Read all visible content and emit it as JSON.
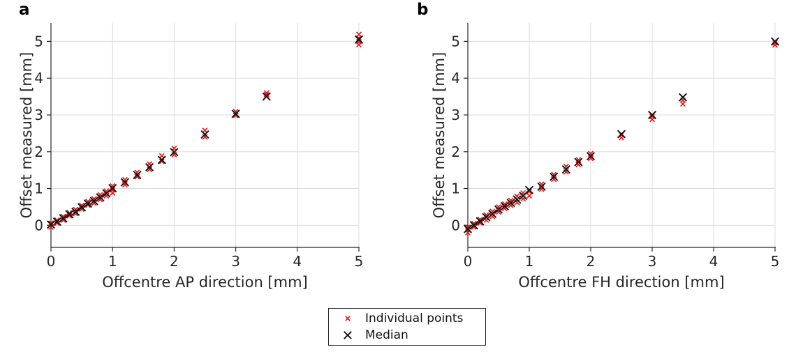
{
  "figure_title": "",
  "colors": {
    "background": "#ffffff",
    "grid": "#dcdcdc",
    "axis": "#262626",
    "text": "#262626",
    "individual": "#ee1111",
    "median": "#111111"
  },
  "legend": {
    "entries": [
      {
        "label": "Individual points",
        "marker": "x-small-red",
        "color": "#ee1111"
      },
      {
        "label": "Median",
        "marker": "X-large-black",
        "color": "#111111"
      }
    ],
    "position": "below-figure-center"
  },
  "chart_data": [
    {
      "type": "scatter",
      "panel_label": "a",
      "xlabel": "Offcentre AP direction [mm]",
      "ylabel": "Offset measured [mm]",
      "xlim": [
        0,
        5
      ],
      "ylim": [
        -0.6,
        5.5
      ],
      "xticks": [
        0,
        1,
        2,
        3,
        4,
        5
      ],
      "yticks": [
        0,
        1,
        2,
        3,
        4,
        5
      ],
      "grid": true,
      "series": [
        {
          "name": "Individual points",
          "marker": "x",
          "color": "#ee1111",
          "points": [
            [
              0,
              0.02
            ],
            [
              0,
              -0.05
            ],
            [
              0,
              0.06
            ],
            [
              0.1,
              0.06
            ],
            [
              0.1,
              0.14
            ],
            [
              0.2,
              0.14
            ],
            [
              0.2,
              0.24
            ],
            [
              0.3,
              0.26
            ],
            [
              0.3,
              0.34
            ],
            [
              0.4,
              0.32
            ],
            [
              0.4,
              0.43
            ],
            [
              0.5,
              0.44
            ],
            [
              0.5,
              0.54
            ],
            [
              0.6,
              0.55
            ],
            [
              0.6,
              0.65
            ],
            [
              0.7,
              0.6
            ],
            [
              0.7,
              0.72
            ],
            [
              0.8,
              0.7
            ],
            [
              0.8,
              0.83
            ],
            [
              0.9,
              0.8
            ],
            [
              0.9,
              0.93
            ],
            [
              1.0,
              0.88
            ],
            [
              1.0,
              0.96
            ],
            [
              1.0,
              1.07
            ],
            [
              1.2,
              1.1
            ],
            [
              1.2,
              1.24
            ],
            [
              1.4,
              1.32
            ],
            [
              1.4,
              1.44
            ],
            [
              1.6,
              1.52
            ],
            [
              1.6,
              1.67
            ],
            [
              1.8,
              1.74
            ],
            [
              1.8,
              1.89
            ],
            [
              2.0,
              1.92
            ],
            [
              2.0,
              2.09
            ],
            [
              2.5,
              2.4
            ],
            [
              2.5,
              2.58
            ],
            [
              3.0,
              2.99
            ],
            [
              3.0,
              3.09
            ],
            [
              3.5,
              3.55
            ],
            [
              3.5,
              3.6
            ],
            [
              5.0,
              4.91
            ],
            [
              5.0,
              4.99
            ],
            [
              5.0,
              5.09
            ],
            [
              5.0,
              5.19
            ]
          ]
        },
        {
          "name": "Median",
          "marker": "X",
          "color": "#111111",
          "points": [
            [
              0,
              0.02
            ],
            [
              0.1,
              0.1
            ],
            [
              0.2,
              0.19
            ],
            [
              0.3,
              0.3
            ],
            [
              0.4,
              0.37
            ],
            [
              0.5,
              0.49
            ],
            [
              0.6,
              0.59
            ],
            [
              0.7,
              0.66
            ],
            [
              0.8,
              0.76
            ],
            [
              0.9,
              0.87
            ],
            [
              1.0,
              1.01
            ],
            [
              1.2,
              1.17
            ],
            [
              1.4,
              1.37
            ],
            [
              1.6,
              1.58
            ],
            [
              1.8,
              1.78
            ],
            [
              2.0,
              1.99
            ],
            [
              2.5,
              2.47
            ],
            [
              3.0,
              3.03
            ],
            [
              3.5,
              3.5
            ],
            [
              5.0,
              5.05
            ]
          ]
        }
      ]
    },
    {
      "type": "scatter",
      "panel_label": "b",
      "xlabel": "Offcentre FH direction [mm]",
      "ylabel": "Offset measured [mm]",
      "xlim": [
        0,
        5
      ],
      "ylim": [
        -0.6,
        5.5
      ],
      "xticks": [
        0,
        1,
        2,
        3,
        4,
        5
      ],
      "yticks": [
        0,
        1,
        2,
        3,
        4,
        5
      ],
      "grid": true,
      "series": [
        {
          "name": "Individual points",
          "marker": "x",
          "color": "#ee1111",
          "points": [
            [
              0,
              -0.2
            ],
            [
              0,
              -0.12
            ],
            [
              0,
              -0.05
            ],
            [
              0.1,
              -0.05
            ],
            [
              0.1,
              0.05
            ],
            [
              0.2,
              0.06
            ],
            [
              0.2,
              0.16
            ],
            [
              0.3,
              0.14
            ],
            [
              0.3,
              0.28
            ],
            [
              0.4,
              0.24
            ],
            [
              0.4,
              0.38
            ],
            [
              0.5,
              0.36
            ],
            [
              0.5,
              0.5
            ],
            [
              0.6,
              0.46
            ],
            [
              0.6,
              0.58
            ],
            [
              0.7,
              0.54
            ],
            [
              0.7,
              0.68
            ],
            [
              0.8,
              0.62
            ],
            [
              0.8,
              0.79
            ],
            [
              0.9,
              0.72
            ],
            [
              0.9,
              0.88
            ],
            [
              1.0,
              0.8
            ],
            [
              1.0,
              0.92
            ],
            [
              1.2,
              0.98
            ],
            [
              1.2,
              1.12
            ],
            [
              1.4,
              1.25
            ],
            [
              1.4,
              1.38
            ],
            [
              1.6,
              1.45
            ],
            [
              1.6,
              1.6
            ],
            [
              1.8,
              1.65
            ],
            [
              1.8,
              1.78
            ],
            [
              2.0,
              1.82
            ],
            [
              2.0,
              1.95
            ],
            [
              2.5,
              2.38
            ],
            [
              2.5,
              2.46
            ],
            [
              3.0,
              2.88
            ],
            [
              3.0,
              2.96
            ],
            [
              3.5,
              3.3
            ],
            [
              3.5,
              3.4
            ],
            [
              5.0,
              4.9
            ],
            [
              5.0,
              4.96
            ]
          ]
        },
        {
          "name": "Median",
          "marker": "X",
          "color": "#111111",
          "points": [
            [
              0,
              -0.1
            ],
            [
              0.1,
              0.0
            ],
            [
              0.2,
              0.11
            ],
            [
              0.3,
              0.22
            ],
            [
              0.4,
              0.31
            ],
            [
              0.5,
              0.43
            ],
            [
              0.6,
              0.52
            ],
            [
              0.7,
              0.61
            ],
            [
              0.8,
              0.7
            ],
            [
              0.9,
              0.8
            ],
            [
              1.0,
              0.96
            ],
            [
              1.2,
              1.05
            ],
            [
              1.4,
              1.32
            ],
            [
              1.6,
              1.52
            ],
            [
              1.8,
              1.72
            ],
            [
              2.0,
              1.88
            ],
            [
              2.5,
              2.48
            ],
            [
              3.0,
              3.0
            ],
            [
              3.5,
              3.48
            ],
            [
              5.0,
              5.0
            ]
          ]
        }
      ]
    }
  ]
}
